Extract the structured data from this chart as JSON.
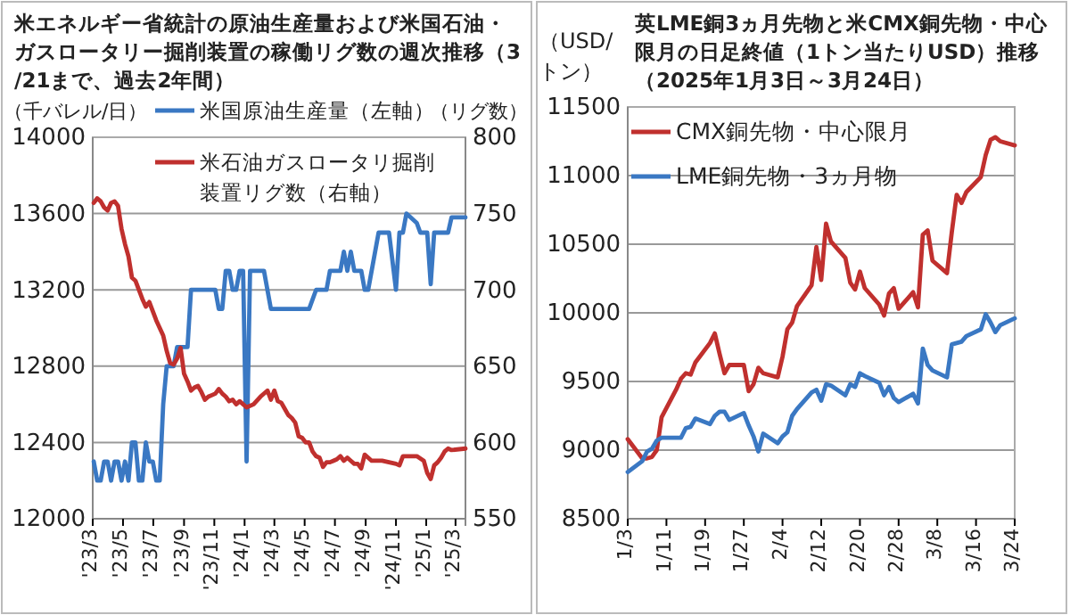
{
  "chart_data": [
    {
      "type": "line",
      "title": "米エネルギー省統計の原油生産量および米国石油・ガスロータリー掘削装置の稼働リグ数の週次推移（3/21まで、過去2年間）",
      "ylabel": "（千バレル/日）",
      "y2label": "（リグ数）",
      "xlim": [
        "2023-03-01",
        "2025-03-21"
      ],
      "xticks": [
        {
          "value": "2023-03-01",
          "label": "'23/3"
        },
        {
          "value": "2023-05-01",
          "label": "'23/5"
        },
        {
          "value": "2023-07-01",
          "label": "'23/7"
        },
        {
          "value": "2023-09-01",
          "label": "'23/9"
        },
        {
          "value": "2023-11-01",
          "label": "'23/11"
        },
        {
          "value": "2024-01-01",
          "label": "'24/1"
        },
        {
          "value": "2024-03-01",
          "label": "'24/3"
        },
        {
          "value": "2024-05-01",
          "label": "'24/5"
        },
        {
          "value": "2024-07-01",
          "label": "'24/7"
        },
        {
          "value": "2024-09-01",
          "label": "'24/9"
        },
        {
          "value": "2024-11-01",
          "label": "'24/11"
        },
        {
          "value": "2025-01-01",
          "label": "'25/1"
        },
        {
          "value": "2025-03-01",
          "label": "'25/3"
        }
      ],
      "ylim": [
        12000,
        14000
      ],
      "yticks": [
        12000,
        12400,
        12800,
        13200,
        13600,
        14000
      ],
      "y2lim": [
        550,
        800
      ],
      "y2ticks": [
        550,
        600,
        650,
        700,
        750,
        800
      ],
      "grid": "y",
      "legend": "top",
      "marker": "none",
      "line_style": "solid",
      "series": [
        {
          "name": "米国原油生産量（左軸）",
          "color": "#3a78c3",
          "x": [
            "2023-03-03",
            "2023-03-10",
            "2023-03-17",
            "2023-03-24",
            "2023-03-31",
            "2023-04-07",
            "2023-04-14",
            "2023-04-21",
            "2023-04-28",
            "2023-05-05",
            "2023-05-12",
            "2023-05-19",
            "2023-05-26",
            "2023-06-02",
            "2023-06-09",
            "2023-06-16",
            "2023-06-23",
            "2023-06-30",
            "2023-07-07",
            "2023-07-14",
            "2023-07-21",
            "2023-07-28",
            "2023-08-11",
            "2023-08-18",
            "2023-09-08",
            "2023-09-15",
            "2023-11-03",
            "2023-11-10",
            "2023-11-17",
            "2023-11-24",
            "2023-12-01",
            "2023-12-08",
            "2023-12-15",
            "2023-12-22",
            "2023-12-29",
            "2024-01-05",
            "2024-01-12",
            "2024-02-09",
            "2024-02-23",
            "2024-05-10",
            "2024-05-24",
            "2024-06-14",
            "2024-06-21",
            "2024-07-12",
            "2024-07-19",
            "2024-07-26",
            "2024-08-02",
            "2024-08-09",
            "2024-08-23",
            "2024-08-30",
            "2024-09-06",
            "2024-09-27",
            "2024-10-18",
            "2024-11-01",
            "2024-11-08",
            "2024-11-15",
            "2024-11-22",
            "2024-12-13",
            "2024-12-20",
            "2025-01-03",
            "2025-01-10",
            "2025-01-17",
            "2025-01-24",
            "2025-02-14",
            "2025-02-21",
            "2025-03-21"
          ],
          "values": [
            12300,
            12200,
            12200,
            12300,
            12300,
            12200,
            12300,
            12300,
            12200,
            12300,
            12200,
            12400,
            12400,
            12200,
            12200,
            12400,
            12300,
            12300,
            12200,
            12200,
            12600,
            12800,
            12800,
            12900,
            12900,
            13200,
            13200,
            13100,
            13100,
            13300,
            13300,
            13200,
            13200,
            13300,
            13300,
            12300,
            13300,
            13300,
            13100,
            13100,
            13200,
            13200,
            13300,
            13300,
            13400,
            13300,
            13400,
            13300,
            13300,
            13200,
            13200,
            13500,
            13500,
            13200,
            13500,
            13500,
            13600,
            13550,
            13500,
            13500,
            13230,
            13500,
            13500,
            13500,
            13580,
            13580
          ]
        },
        {
          "name": "米石油ガスロータリ掘削装置リグ数（右軸）",
          "color": "#c0302e",
          "axis": "y2",
          "x": [
            "2023-03-03",
            "2023-03-10",
            "2023-03-17",
            "2023-03-24",
            "2023-03-31",
            "2023-04-07",
            "2023-04-14",
            "2023-04-21",
            "2023-04-28",
            "2023-05-05",
            "2023-05-12",
            "2023-05-19",
            "2023-05-26",
            "2023-06-02",
            "2023-06-09",
            "2023-06-16",
            "2023-06-23",
            "2023-06-30",
            "2023-07-07",
            "2023-07-14",
            "2023-07-21",
            "2023-07-28",
            "2023-08-04",
            "2023-08-11",
            "2023-08-18",
            "2023-08-25",
            "2023-09-01",
            "2023-09-08",
            "2023-09-15",
            "2023-09-22",
            "2023-09-29",
            "2023-10-06",
            "2023-10-13",
            "2023-10-20",
            "2023-10-27",
            "2023-11-03",
            "2023-11-10",
            "2023-11-17",
            "2023-11-24",
            "2023-12-01",
            "2023-12-08",
            "2023-12-15",
            "2023-12-22",
            "2024-01-05",
            "2024-01-19",
            "2024-02-02",
            "2024-02-16",
            "2024-02-23",
            "2024-03-01",
            "2024-03-08",
            "2024-03-15",
            "2024-03-22",
            "2024-03-29",
            "2024-04-05",
            "2024-04-12",
            "2024-04-19",
            "2024-04-26",
            "2024-05-03",
            "2024-05-10",
            "2024-05-17",
            "2024-05-24",
            "2024-05-31",
            "2024-06-07",
            "2024-06-14",
            "2024-06-21",
            "2024-06-28",
            "2024-07-05",
            "2024-07-12",
            "2024-07-19",
            "2024-07-26",
            "2024-08-02",
            "2024-08-09",
            "2024-08-16",
            "2024-08-23",
            "2024-08-30",
            "2024-09-06",
            "2024-09-13",
            "2024-10-04",
            "2024-11-01",
            "2024-11-08",
            "2024-11-15",
            "2024-12-13",
            "2024-12-27",
            "2025-01-03",
            "2025-01-10",
            "2025-01-17",
            "2025-01-24",
            "2025-01-31",
            "2025-02-07",
            "2025-02-14",
            "2025-02-21",
            "2025-03-21"
          ],
          "values": [
            757,
            760,
            758,
            754,
            752,
            757,
            758,
            755,
            740,
            730,
            722,
            708,
            706,
            700,
            694,
            689,
            692,
            686,
            680,
            675,
            670,
            660,
            652,
            651,
            655,
            662,
            645,
            640,
            634,
            636,
            637,
            633,
            628,
            630,
            631,
            632,
            635,
            632,
            630,
            627,
            628,
            625,
            627,
            623,
            625,
            630,
            634,
            628,
            634,
            627,
            626,
            622,
            618,
            616,
            613,
            604,
            603,
            600,
            600,
            594,
            591,
            590,
            584,
            587,
            587,
            588,
            589,
            591,
            588,
            590,
            588,
            586,
            586,
            583,
            592,
            590,
            588,
            588,
            586,
            585,
            591,
            591,
            588,
            580,
            576,
            585,
            587,
            590,
            594,
            596,
            595,
            596
          ]
        }
      ]
    },
    {
      "type": "line",
      "title": "英LME銅3ヵ月先物と米CMX銅先物・中心限月の日足終値（1トン当たりUSD）推移（2025年1月3日～3月24日）",
      "ylabel": "（USD/トン）",
      "xlim": [
        "2025-01-03",
        "2025-03-24"
      ],
      "xticks": [
        {
          "value": "2025-01-03",
          "label": "1/3"
        },
        {
          "value": "2025-01-11",
          "label": "1/11"
        },
        {
          "value": "2025-01-19",
          "label": "1/19"
        },
        {
          "value": "2025-01-27",
          "label": "1/27"
        },
        {
          "value": "2025-02-04",
          "label": "2/4"
        },
        {
          "value": "2025-02-12",
          "label": "2/12"
        },
        {
          "value": "2025-02-20",
          "label": "2/20"
        },
        {
          "value": "2025-02-28",
          "label": "2/28"
        },
        {
          "value": "2025-03-08",
          "label": "3/8"
        },
        {
          "value": "2025-03-16",
          "label": "3/16"
        },
        {
          "value": "2025-03-24",
          "label": "3/24"
        }
      ],
      "ylim": [
        8500,
        11500
      ],
      "yticks": [
        8500,
        9000,
        9500,
        10000,
        10500,
        11000,
        11500
      ],
      "grid": "y",
      "legend": "top",
      "marker": "none",
      "line_style": "solid",
      "x": [
        "2025-01-03",
        "2025-01-06",
        "2025-01-07",
        "2025-01-08",
        "2025-01-09",
        "2025-01-10",
        "2025-01-13",
        "2025-01-14",
        "2025-01-15",
        "2025-01-16",
        "2025-01-17",
        "2025-01-20",
        "2025-01-21",
        "2025-01-22",
        "2025-01-23",
        "2025-01-24",
        "2025-01-27",
        "2025-01-28",
        "2025-01-29",
        "2025-01-30",
        "2025-01-31",
        "2025-02-03",
        "2025-02-04",
        "2025-02-05",
        "2025-02-06",
        "2025-02-07",
        "2025-02-10",
        "2025-02-11",
        "2025-02-12",
        "2025-02-13",
        "2025-02-14",
        "2025-02-17",
        "2025-02-18",
        "2025-02-19",
        "2025-02-20",
        "2025-02-21",
        "2025-02-24",
        "2025-02-25",
        "2025-02-26",
        "2025-02-27",
        "2025-02-28",
        "2025-03-03",
        "2025-03-04",
        "2025-03-05",
        "2025-03-06",
        "2025-03-07",
        "2025-03-10",
        "2025-03-11",
        "2025-03-12",
        "2025-03-13",
        "2025-03-14",
        "2025-03-17",
        "2025-03-18",
        "2025-03-19",
        "2025-03-20",
        "2025-03-21",
        "2025-03-24"
      ],
      "series": [
        {
          "name": "CMX銅先物・中心限月",
          "color": "#c0302e",
          "values": [
            9080,
            8940,
            8940,
            8950,
            9000,
            9240,
            9440,
            9520,
            9560,
            9550,
            9640,
            9780,
            9850,
            9700,
            9560,
            9620,
            9620,
            9430,
            9480,
            9600,
            9560,
            9530,
            9680,
            9880,
            9930,
            10050,
            10200,
            10480,
            10240,
            10650,
            10520,
            10400,
            10220,
            10170,
            10300,
            10180,
            10060,
            9980,
            10140,
            10180,
            10030,
            10150,
            10040,
            10570,
            10600,
            10380,
            10290,
            10590,
            10860,
            10800,
            10880,
            10990,
            11150,
            11260,
            11280,
            11250,
            11220
          ]
        },
        {
          "name": "LME銅先物・3ヵ月物",
          "color": "#3a78c3",
          "values": [
            8840,
            8920,
            8990,
            9010,
            9070,
            9090,
            9090,
            9090,
            9160,
            9170,
            9230,
            9190,
            9250,
            9280,
            9280,
            9220,
            9270,
            9180,
            9100,
            8990,
            9120,
            9050,
            9100,
            9130,
            9250,
            9300,
            9420,
            9440,
            9360,
            9480,
            9470,
            9400,
            9480,
            9460,
            9560,
            9540,
            9490,
            9400,
            9460,
            9380,
            9350,
            9410,
            9340,
            9740,
            9620,
            9580,
            9530,
            9770,
            9780,
            9790,
            9830,
            9880,
            9990,
            9930,
            9860,
            9910,
            9960
          ]
        }
      ]
    }
  ]
}
